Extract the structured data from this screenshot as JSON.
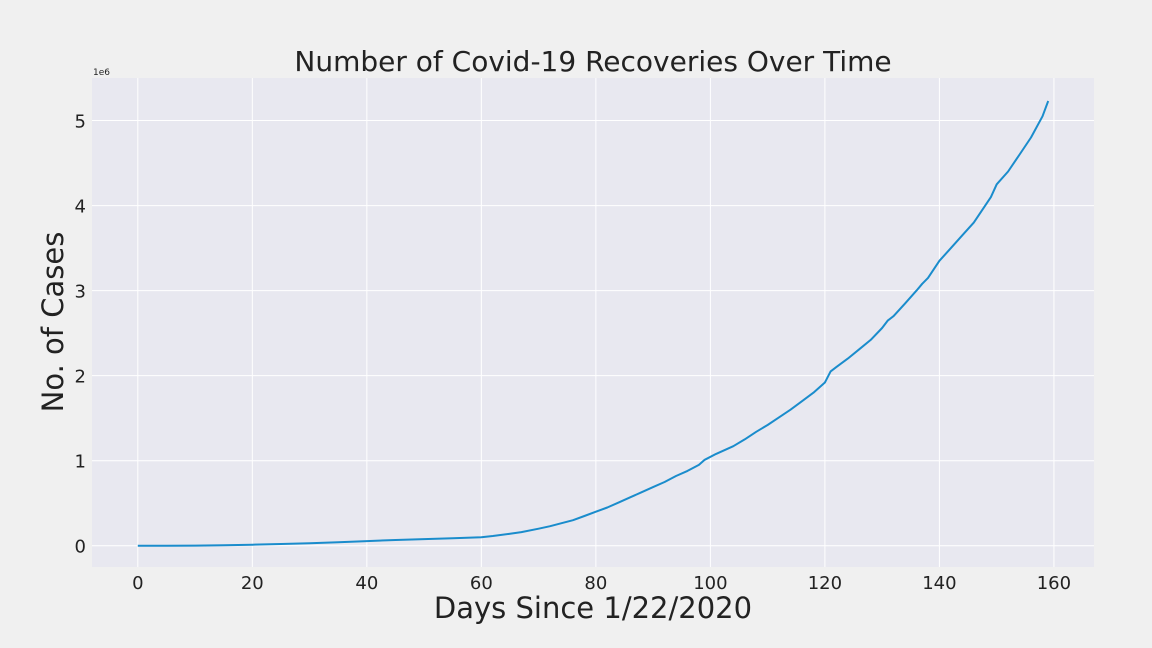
{
  "chart_data": {
    "type": "line",
    "title": "Number of Covid-19 Recoveries Over Time",
    "xlabel": "Days Since 1/22/2020",
    "ylabel": "No. of Cases",
    "y_offset_label": "1e6",
    "xlim": [
      -8,
      167
    ],
    "ylim": [
      -250000,
      5500000
    ],
    "x_ticks": [
      0,
      20,
      40,
      60,
      80,
      100,
      120,
      140,
      160
    ],
    "y_ticks": [
      0,
      1000000,
      2000000,
      3000000,
      4000000,
      5000000
    ],
    "y_tick_labels": [
      "0",
      "1",
      "2",
      "3",
      "4",
      "5"
    ],
    "grid": true,
    "colors": {
      "line": "#1a8ccc",
      "plot_background": "#e8e8f0",
      "figure_background": "#f0f0f0",
      "grid": "#ffffff"
    },
    "series": [
      {
        "x": [
          0,
          5,
          10,
          15,
          20,
          25,
          30,
          35,
          40,
          45,
          50,
          55,
          60,
          62,
          65,
          67,
          70,
          72,
          74,
          76,
          78,
          80,
          82,
          84,
          86,
          88,
          90,
          92,
          94,
          96,
          98,
          99,
          101,
          104,
          106,
          108,
          110,
          112,
          114,
          116,
          118,
          120,
          121,
          122,
          124,
          126,
          128,
          130,
          131,
          132,
          134,
          136,
          137,
          138,
          140,
          142,
          144,
          146,
          147,
          149,
          150,
          152,
          154,
          156,
          158,
          159
        ],
        "y": [
          0,
          500,
          2000,
          5000,
          12000,
          20000,
          30000,
          42000,
          55000,
          67000,
          78000,
          88000,
          100000,
          115000,
          140000,
          160000,
          200000,
          230000,
          265000,
          300000,
          350000,
          400000,
          450000,
          510000,
          570000,
          630000,
          690000,
          750000,
          820000,
          880000,
          950000,
          1010000,
          1080000,
          1170000,
          1250000,
          1340000,
          1420000,
          1510000,
          1600000,
          1700000,
          1800000,
          1920000,
          2050000,
          2100000,
          2200000,
          2310000,
          2420000,
          2560000,
          2650000,
          2700000,
          2850000,
          3000000,
          3080000,
          3150000,
          3350000,
          3500000,
          3650000,
          3800000,
          3900000,
          4100000,
          4250000,
          4400000,
          4600000,
          4800000,
          5050000,
          5230000
        ]
      }
    ]
  }
}
